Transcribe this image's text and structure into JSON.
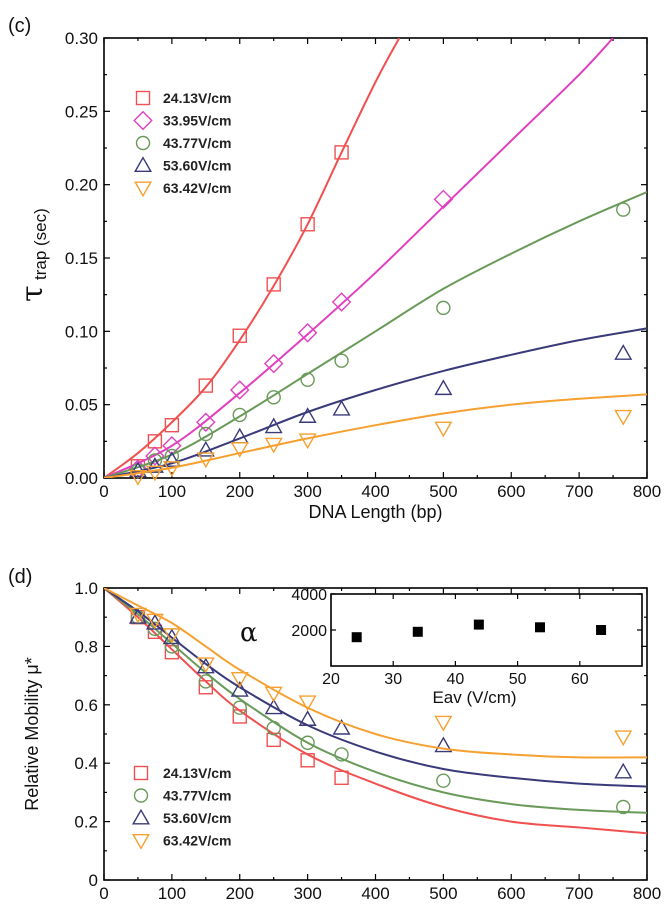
{
  "chart_data": [
    {
      "panel": "(c)",
      "type": "scatter",
      "xlabel": "DNA Length (bp)",
      "ylabel_main": "τ",
      "ylabel_sub": "trap (sec)",
      "xlim": [
        0,
        800
      ],
      "ylim": [
        0,
        0.3
      ],
      "xticks": [
        0,
        100,
        200,
        300,
        400,
        500,
        600,
        700,
        800
      ],
      "xtick_labels": [
        "0",
        "100",
        "200",
        "300",
        "400",
        "500",
        "600",
        "700",
        "800"
      ],
      "yticks": [
        0,
        0.05,
        0.1,
        0.15,
        0.2,
        0.25,
        0.3
      ],
      "ytick_labels": [
        "0.00",
        "0.05",
        "0.10",
        "0.15",
        "0.20",
        "0.25",
        "0.30"
      ],
      "grid": false,
      "legend_position": "top-left",
      "series": [
        {
          "name": "24.13V/cm",
          "color": "#f05050",
          "marker": "square",
          "x": [
            50,
            75,
            100,
            150,
            200,
            250,
            300,
            350
          ],
          "y": [
            0.008,
            0.025,
            0.036,
            0.063,
            0.097,
            0.132,
            0.173,
            0.222
          ],
          "fit_x": [
            0,
            50,
            100,
            150,
            200,
            250,
            300,
            350,
            400,
            435
          ],
          "fit_y": [
            0,
            0.017,
            0.038,
            0.062,
            0.094,
            0.131,
            0.173,
            0.222,
            0.27,
            0.3
          ]
        },
        {
          "name": "33.95V/cm",
          "color": "#e040c0",
          "marker": "diamond",
          "x": [
            50,
            75,
            100,
            150,
            200,
            250,
            300,
            350,
            500
          ],
          "y": [
            0.006,
            0.015,
            0.022,
            0.038,
            0.06,
            0.078,
            0.099,
            0.12,
            0.19
          ],
          "fit_x": [
            0,
            100,
            200,
            300,
            400,
            500,
            600,
            700,
            750
          ],
          "fit_y": [
            0,
            0.022,
            0.058,
            0.098,
            0.14,
            0.185,
            0.23,
            0.275,
            0.3
          ]
        },
        {
          "name": "43.77V/cm",
          "color": "#6a9a5a",
          "marker": "circle",
          "x": [
            50,
            75,
            100,
            150,
            200,
            250,
            300,
            350,
            500,
            765
          ],
          "y": [
            0.005,
            0.012,
            0.015,
            0.03,
            0.043,
            0.055,
            0.067,
            0.08,
            0.116,
            0.183
          ],
          "fit_x": [
            0,
            100,
            200,
            300,
            400,
            500,
            600,
            700,
            800
          ],
          "fit_y": [
            0,
            0.016,
            0.042,
            0.071,
            0.1,
            0.129,
            0.153,
            0.175,
            0.195
          ]
        },
        {
          "name": "53.60V/cm",
          "color": "#3a3a7a",
          "marker": "triangle-up",
          "x": [
            50,
            75,
            100,
            150,
            200,
            250,
            300,
            350,
            500,
            765
          ],
          "y": [
            0.005,
            0.008,
            0.012,
            0.019,
            0.028,
            0.035,
            0.042,
            0.047,
            0.061,
            0.085
          ],
          "fit_x": [
            0,
            100,
            200,
            300,
            400,
            500,
            600,
            700,
            800
          ],
          "fit_y": [
            0,
            0.01,
            0.027,
            0.045,
            0.06,
            0.073,
            0.084,
            0.094,
            0.102
          ]
        },
        {
          "name": "63.42V/cm",
          "color": "#f5a030",
          "marker": "triangle-down",
          "x": [
            50,
            75,
            100,
            150,
            200,
            250,
            300,
            500,
            765
          ],
          "y": [
            0.001,
            0.004,
            0.007,
            0.013,
            0.02,
            0.023,
            0.026,
            0.034,
            0.042
          ],
          "fit_x": [
            0,
            100,
            200,
            300,
            400,
            500,
            600,
            700,
            800
          ],
          "fit_y": [
            0,
            0.007,
            0.017,
            0.027,
            0.036,
            0.044,
            0.05,
            0.054,
            0.057
          ]
        }
      ]
    },
    {
      "panel": "(d)",
      "type": "scatter",
      "xlabel": "DNA Length (bp)",
      "ylabel": "Relative Mobility μ*",
      "xlim": [
        0,
        800
      ],
      "ylim": [
        0,
        1.0
      ],
      "xticks": [
        0,
        100,
        200,
        300,
        400,
        500,
        600,
        700,
        800
      ],
      "xtick_labels": [
        "0",
        "100",
        "200",
        "300",
        "400",
        "500",
        "600",
        "700",
        "800"
      ],
      "yticks": [
        0,
        0.2,
        0.4,
        0.6,
        0.8,
        1.0
      ],
      "ytick_labels": [
        "0",
        "0.2",
        "0.4",
        "0.6",
        "0.8",
        "1.0"
      ],
      "grid": false,
      "legend_position": "bottom-left",
      "series": [
        {
          "name": "24.13V/cm",
          "color": "#f05050",
          "marker": "square",
          "x": [
            50,
            75,
            100,
            150,
            200,
            250,
            300,
            350
          ],
          "y": [
            0.9,
            0.85,
            0.78,
            0.66,
            0.56,
            0.48,
            0.41,
            0.35
          ],
          "fit_x": [
            0,
            50,
            100,
            150,
            200,
            300,
            400,
            500,
            600,
            700,
            800
          ],
          "fit_y": [
            1.0,
            0.9,
            0.79,
            0.68,
            0.58,
            0.43,
            0.33,
            0.25,
            0.2,
            0.18,
            0.16
          ]
        },
        {
          "name": "43.77V/cm",
          "color": "#6a9a5a",
          "marker": "circle",
          "x": [
            50,
            75,
            100,
            150,
            200,
            250,
            300,
            350,
            500,
            765
          ],
          "y": [
            0.9,
            0.86,
            0.8,
            0.68,
            0.59,
            0.52,
            0.47,
            0.43,
            0.34,
            0.25
          ],
          "fit_x": [
            0,
            50,
            100,
            150,
            200,
            300,
            400,
            500,
            600,
            700,
            800
          ],
          "fit_y": [
            1.0,
            0.91,
            0.81,
            0.71,
            0.62,
            0.47,
            0.37,
            0.3,
            0.26,
            0.24,
            0.23
          ]
        },
        {
          "name": "53.60V/cm",
          "color": "#3a3a7a",
          "marker": "triangle-up",
          "x": [
            50,
            75,
            100,
            150,
            200,
            250,
            300,
            350,
            500,
            765
          ],
          "y": [
            0.9,
            0.88,
            0.83,
            0.73,
            0.65,
            0.59,
            0.55,
            0.52,
            0.46,
            0.37
          ],
          "fit_x": [
            0,
            50,
            100,
            150,
            200,
            300,
            400,
            500,
            600,
            700,
            800
          ],
          "fit_y": [
            1.0,
            0.92,
            0.83,
            0.74,
            0.66,
            0.53,
            0.44,
            0.38,
            0.35,
            0.33,
            0.32
          ]
        },
        {
          "name": "63.42V/cm",
          "color": "#f5a030",
          "marker": "triangle-down",
          "x": [
            50,
            75,
            100,
            150,
            200,
            250,
            300,
            500,
            765
          ],
          "y": [
            0.91,
            0.89,
            0.84,
            0.74,
            0.69,
            0.64,
            0.61,
            0.54,
            0.49
          ],
          "fit_x": [
            0,
            50,
            100,
            150,
            200,
            300,
            400,
            500,
            600,
            700,
            800
          ],
          "fit_y": [
            1.0,
            0.94,
            0.88,
            0.8,
            0.72,
            0.59,
            0.5,
            0.45,
            0.43,
            0.42,
            0.42
          ]
        }
      ],
      "inset": {
        "type": "scatter",
        "ylabel": "α",
        "xlabel": "Eav (V/cm)",
        "xlim": [
          20,
          70
        ],
        "ylim": [
          0,
          4000
        ],
        "xticks": [
          20,
          30,
          40,
          50,
          60
        ],
        "xtick_labels": [
          "20",
          "30",
          "40",
          "50",
          "60"
        ],
        "yticks": [
          2000,
          4000
        ],
        "ytick_labels": [
          "2000",
          "4000"
        ],
        "x": [
          24.13,
          33.95,
          43.77,
          53.6,
          63.42
        ],
        "y": [
          1600,
          1900,
          2300,
          2150,
          2000
        ],
        "color": "#000000",
        "marker": "filled-square"
      }
    }
  ]
}
